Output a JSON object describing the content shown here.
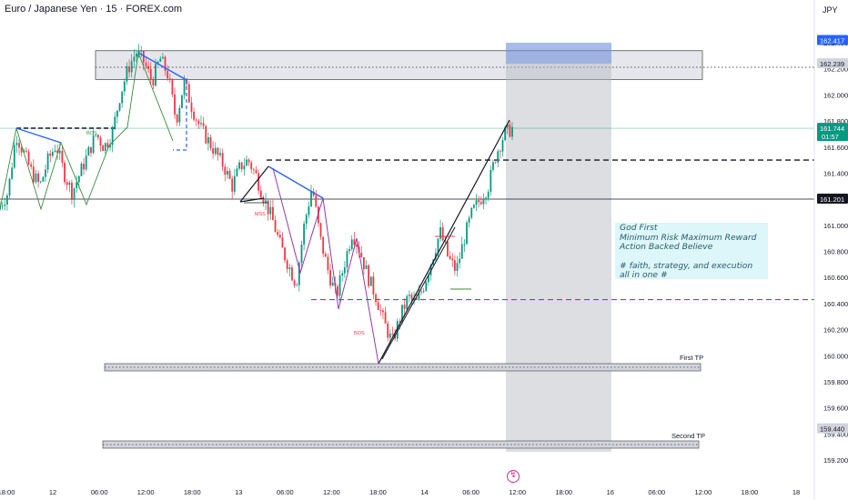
{
  "header": {
    "title": "Euro / Japanese Yen · 15 · FOREX.com",
    "currency": "JPY"
  },
  "colors": {
    "up": "#089981",
    "down": "#f23645",
    "zone_fill": "#d1d4dc",
    "target_fill": "#2962ff",
    "projection_fill": "#b2b5be",
    "note_bg": "#b2ebf2",
    "blue_line": "#2962ff",
    "black_line": "#131722"
  },
  "chart_data": {
    "type": "candlestick",
    "symbol": "EURJPY",
    "timeframe": "15",
    "y_ticks": [
      159.2,
      159.4,
      159.6,
      159.8,
      160.0,
      160.2,
      160.4,
      160.6,
      160.8,
      161.0,
      161.2,
      161.4,
      161.6,
      161.8,
      162.0,
      162.2,
      162.4
    ],
    "y_tick_labels": [
      "159.200",
      "159.400",
      "159.600",
      "159.800",
      "160.000",
      "160.200",
      "160.400",
      "160.600",
      "160.800",
      "161.000",
      "161.200",
      "161.400",
      "161.600",
      "161.800",
      "162.000",
      "162.200",
      "162.400"
    ],
    "x_tick_labels": [
      "18:00",
      "12",
      "06:00",
      "12:00",
      "18:00",
      "13",
      "06:00",
      "12:00",
      "18:00",
      "14",
      "06:00",
      "12:00",
      "18:00",
      "16",
      "06:00",
      "12:00",
      "18:00",
      "18"
    ],
    "x_ticks": [
      0,
      6,
      12,
      18,
      24,
      30,
      36,
      42,
      48,
      54,
      60,
      66,
      72,
      78,
      84,
      90,
      96,
      102
    ],
    "price_badges": [
      {
        "value": "162.417",
        "color": "#2962ff",
        "text_color": "#ffffff"
      },
      {
        "value": "162.239",
        "color": "#d1d4dc",
        "text_color": "#131722"
      },
      {
        "value": "161.744",
        "sub": "01:57",
        "color": "#089981",
        "text_color": "#ffffff"
      },
      {
        "value": "161.201",
        "color": "#131722",
        "text_color": "#ffffff"
      },
      {
        "value": "159.440",
        "color": "#d1d4dc",
        "text_color": "#131722"
      }
    ],
    "price_path": [
      [
        0,
        161.15
      ],
      [
        1,
        161.25
      ],
      [
        2,
        161.7
      ],
      [
        3,
        161.55
      ],
      [
        4,
        161.4
      ],
      [
        5,
        161.3
      ],
      [
        6,
        161.5
      ],
      [
        7,
        161.62
      ],
      [
        8,
        161.4
      ],
      [
        9,
        161.25
      ],
      [
        10,
        161.4
      ],
      [
        11,
        161.55
      ],
      [
        12,
        161.7
      ],
      [
        13,
        161.6
      ],
      [
        14,
        161.7
      ],
      [
        15,
        162.0
      ],
      [
        16,
        162.2
      ],
      [
        17,
        162.33
      ],
      [
        18,
        162.25
      ],
      [
        19,
        162.1
      ],
      [
        20,
        162.28
      ],
      [
        21,
        162.15
      ],
      [
        22,
        161.8
      ],
      [
        23,
        162.1
      ],
      [
        24,
        161.9
      ],
      [
        25,
        161.75
      ],
      [
        26,
        161.65
      ],
      [
        27,
        161.55
      ],
      [
        28,
        161.45
      ],
      [
        29,
        161.3
      ],
      [
        30,
        161.45
      ],
      [
        31,
        161.5
      ],
      [
        32,
        161.38
      ],
      [
        33,
        161.2
      ],
      [
        34,
        161.05
      ],
      [
        35,
        160.85
      ],
      [
        36,
        160.7
      ],
      [
        37,
        160.55
      ],
      [
        38,
        161.0
      ],
      [
        39,
        161.3
      ],
      [
        40,
        160.9
      ],
      [
        41,
        160.65
      ],
      [
        42,
        160.45
      ],
      [
        43,
        160.7
      ],
      [
        44,
        160.95
      ],
      [
        45,
        160.8
      ],
      [
        46,
        160.6
      ],
      [
        47,
        160.45
      ],
      [
        48,
        160.25
      ],
      [
        49,
        160.1
      ],
      [
        50,
        160.3
      ],
      [
        51,
        160.45
      ],
      [
        52,
        160.4
      ],
      [
        53,
        160.55
      ],
      [
        54,
        160.75
      ],
      [
        55,
        160.95
      ],
      [
        56,
        160.75
      ],
      [
        57,
        160.65
      ],
      [
        58,
        160.9
      ],
      [
        59,
        161.1
      ],
      [
        60,
        161.2
      ],
      [
        61,
        161.3
      ],
      [
        62,
        161.55
      ],
      [
        63,
        161.7
      ],
      [
        64,
        161.744
      ]
    ],
    "zones": [
      {
        "name": "supply",
        "from": 162.118,
        "to": 162.339,
        "x_from": 0,
        "x_to": 98
      },
      {
        "name": "first-tp",
        "from": 160.02,
        "to": 160.04,
        "x_from": 13,
        "x_to": 98,
        "label": "First TP"
      },
      {
        "name": "second-tp",
        "from": 159.43,
        "to": 159.45,
        "x_from": 13,
        "x_to": 98,
        "label": "Second TP"
      }
    ],
    "levels": [
      {
        "name": "hline-161-2",
        "value": 161.201,
        "style": "solid"
      },
      {
        "name": "black-dashed-161-5",
        "value": 161.5,
        "x_from": 38,
        "style": "dashed"
      },
      {
        "name": "blue-dashed-160-43",
        "value": 160.43,
        "x_from": 43,
        "style": "dashed"
      }
    ],
    "projection": {
      "x_from": 65,
      "x_to": 77,
      "top": 162.417,
      "bottom": 159.37,
      "target_top": 162.417,
      "target_bottom": 162.239
    },
    "annotations": [
      "BOS",
      "MSS",
      "BOS"
    ],
    "grid": false
  },
  "note": {
    "line1": "God First",
    "line2": "Minimum Risk Maximum Reward",
    "line3": "Action Backed Believe",
    "line4": "# faith, strategy, and execution all in one #"
  },
  "tp_labels": {
    "first": "First TP",
    "second": "Second TP"
  }
}
